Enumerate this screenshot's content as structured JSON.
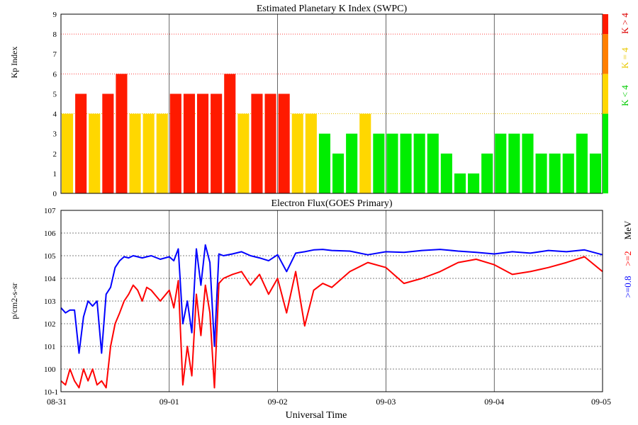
{
  "chart_data": [
    {
      "type": "bar",
      "title": "Estimated Planetary K Index (SWPC)",
      "ylabel": "Kp Index",
      "ylim": [
        0,
        9
      ],
      "yticks": [
        "0",
        "1",
        "2",
        "3",
        "4",
        "5",
        "6",
        "7",
        "8",
        "9"
      ],
      "xlim": [
        "08-31 00:00",
        "09-05 00:00"
      ],
      "bar_interval_hours": 3,
      "values": [
        4,
        5,
        4,
        5,
        6,
        4,
        4,
        4,
        5,
        5,
        5,
        5,
        6,
        4,
        5,
        5,
        5,
        4,
        4,
        3,
        2,
        3,
        4,
        3,
        3,
        3,
        3,
        3,
        2,
        1,
        1,
        2,
        3,
        3,
        3,
        2,
        2,
        2,
        3,
        2
      ],
      "threshold_lines": [
        4,
        6,
        8
      ],
      "colors": {
        "low": "#00ee00",
        "mid": "#ffd700",
        "high": "#ff1a00",
        "storm_scale": "#ff7f00"
      },
      "legend": [
        {
          "label": "K < 4",
          "color": "#00cc00"
        },
        {
          "label": "K = 4",
          "color": "#e8c800"
        },
        {
          "label": "K > 4",
          "color": "#dd0000"
        }
      ]
    },
    {
      "type": "line",
      "title": "Electron Flux(GOES Primary)",
      "ylabel": "p/cm2-s-sr",
      "xlabel": "Universal Time",
      "yscale": "log",
      "ylim": [
        0.1,
        10000000
      ],
      "ytick_labels": [
        "10-1",
        "100",
        "101",
        "102",
        "103",
        "104",
        "105",
        "106",
        "107"
      ],
      "x_tick_labels": [
        "08-31",
        "09-01",
        "09-02",
        "09-03",
        "09-04",
        "09-05"
      ],
      "xlim": [
        "08-31 00:00",
        "09-05 00:00"
      ],
      "legend": [
        {
          "label": ">=0.8",
          "color": "#0000ff"
        },
        {
          "label": ">=2",
          "color": "#ff0000"
        },
        {
          "label": "MeV",
          "color": "#000000"
        }
      ],
      "series": [
        {
          "name": ">=0.8",
          "color": "#0000ff",
          "x_hours": [
            0,
            1,
            2,
            3,
            4,
            5,
            6,
            7,
            8,
            9,
            10,
            11,
            12,
            13,
            14,
            15,
            16,
            17,
            18,
            19,
            20,
            22,
            24,
            25,
            26,
            27,
            28,
            29,
            30,
            31,
            32,
            33,
            34,
            35,
            36,
            38,
            40,
            42,
            44,
            46,
            48,
            50,
            52,
            54,
            56,
            58,
            60,
            64,
            68,
            72,
            76,
            80,
            84,
            88,
            92,
            96,
            100,
            104,
            108,
            112,
            116,
            120
          ],
          "y": [
            500,
            300,
            400,
            400,
            5,
            200,
            1000,
            600,
            1000,
            5,
            2000,
            4000,
            30000,
            60000,
            90000,
            80000,
            100000,
            90000,
            80000,
            90000,
            100000,
            70000,
            90000,
            60000,
            200000,
            100,
            1000,
            40,
            200000,
            5000,
            300000,
            50000,
            10,
            120000,
            100000,
            120000,
            150000,
            100000,
            80000,
            60000,
            110000,
            20000,
            130000,
            150000,
            180000,
            190000,
            170000,
            160000,
            110000,
            150000,
            140000,
            170000,
            190000,
            160000,
            140000,
            120000,
            150000,
            130000,
            170000,
            150000,
            180000,
            110000
          ]
        },
        {
          "name": ">=2",
          "color": "#ff0000",
          "x_hours": [
            0,
            1,
            2,
            3,
            4,
            5,
            6,
            7,
            8,
            9,
            10,
            11,
            12,
            13,
            14,
            15,
            16,
            17,
            18,
            19,
            20,
            22,
            24,
            25,
            26,
            27,
            28,
            29,
            30,
            31,
            32,
            33,
            34,
            35,
            36,
            38,
            40,
            42,
            44,
            46,
            48,
            50,
            52,
            54,
            56,
            58,
            60,
            64,
            68,
            72,
            76,
            80,
            84,
            88,
            92,
            96,
            100,
            104,
            108,
            112,
            116,
            120
          ],
          "y": [
            0.3,
            0.2,
            1,
            0.3,
            0.15,
            1,
            0.3,
            1,
            0.2,
            0.3,
            0.15,
            10,
            100,
            300,
            1000,
            2000,
            5000,
            3000,
            1000,
            4000,
            3000,
            1000,
            3000,
            500,
            8000,
            0.2,
            10,
            0.5,
            2000,
            30,
            5000,
            300,
            0.15,
            6000,
            10000,
            15000,
            20000,
            5000,
            15000,
            2000,
            10000,
            300,
            20000,
            80,
            3000,
            6000,
            4000,
            20000,
            50000,
            30000,
            6000,
            10000,
            20000,
            50000,
            70000,
            40000,
            15000,
            20000,
            30000,
            50000,
            90000,
            20000
          ]
        }
      ]
    }
  ],
  "colors": {
    "grid": "#000000",
    "frame": "#000000"
  }
}
